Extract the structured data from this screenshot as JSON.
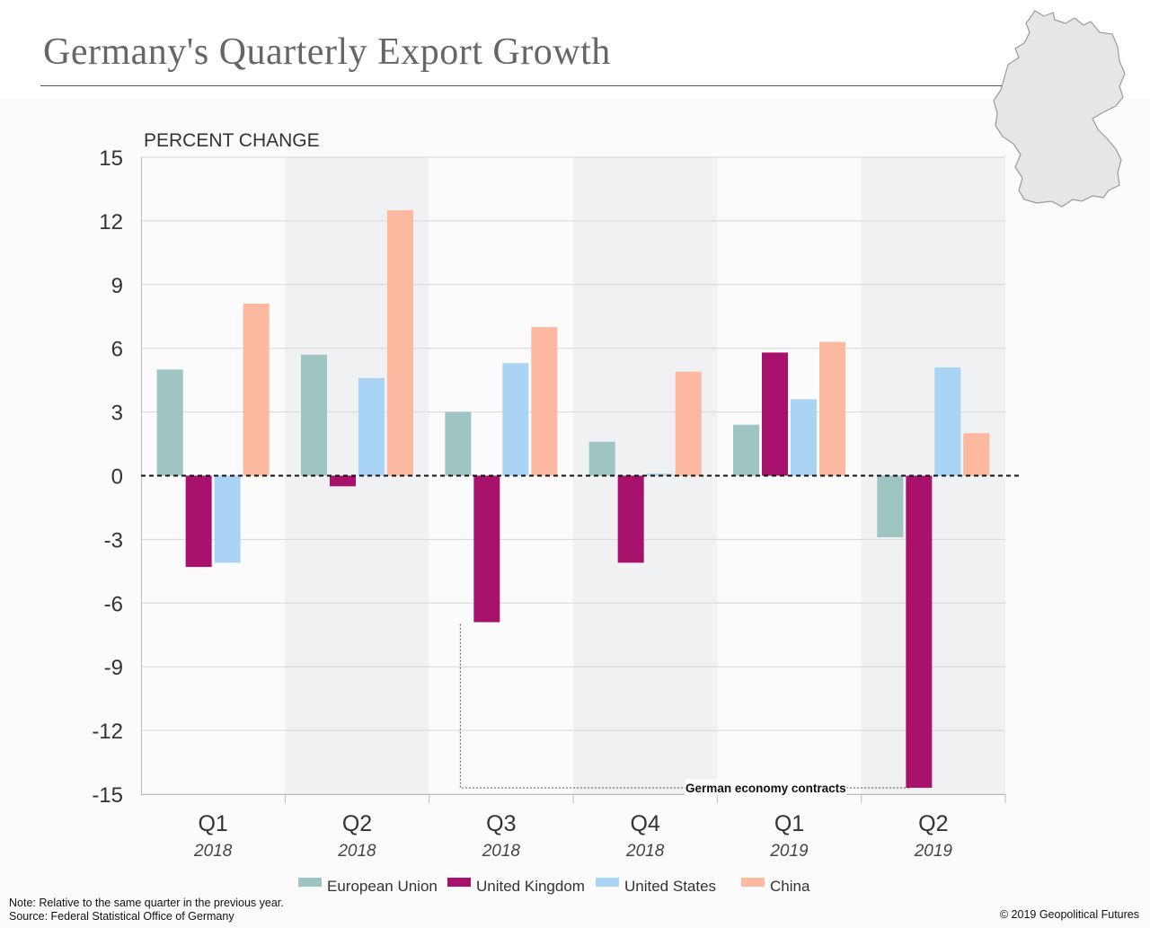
{
  "page": {
    "title": "Germany's Quarterly Export Growth",
    "note": "Note: Relative to the same quarter in the previous year.",
    "source": "Source: Federal Statistical Office of Germany",
    "copyright": "© 2019 Geopolitical Futures",
    "map_icon": "germany-map-icon"
  },
  "chart_data": {
    "type": "bar",
    "ylabel": "PERCENT CHANGE",
    "ylim": [
      -15,
      15
    ],
    "yticks": [
      15,
      12,
      9,
      6,
      3,
      0,
      -3,
      -6,
      -9,
      -12,
      -15
    ],
    "categories": [
      "Q1",
      "Q2",
      "Q3",
      "Q4",
      "Q1",
      "Q2"
    ],
    "category_years": [
      "2018",
      "2018",
      "2018",
      "2018",
      "2019",
      "2019"
    ],
    "shaded_categories": [
      1,
      3,
      5
    ],
    "series": [
      {
        "name": "European Union",
        "color": "#9ec5c1",
        "values": [
          5.0,
          5.7,
          3.0,
          1.6,
          2.4,
          -2.9
        ]
      },
      {
        "name": "United Kingdom",
        "color": "#a8126d",
        "values": [
          -4.3,
          -0.5,
          -6.9,
          -4.1,
          5.8,
          -14.7
        ]
      },
      {
        "name": "United States",
        "color": "#aad4f5",
        "values": [
          -4.1,
          4.6,
          5.3,
          0.1,
          3.6,
          5.1
        ]
      },
      {
        "name": "China",
        "color": "#fdb8a0",
        "values": [
          8.1,
          12.5,
          7.0,
          4.9,
          6.3,
          2.0
        ]
      }
    ],
    "annotation": {
      "text": "German economy contracts",
      "from": {
        "category": 2,
        "series": 1
      },
      "to": {
        "category": 5,
        "series": 1
      }
    },
    "grid": true,
    "legend_position": "bottom"
  }
}
